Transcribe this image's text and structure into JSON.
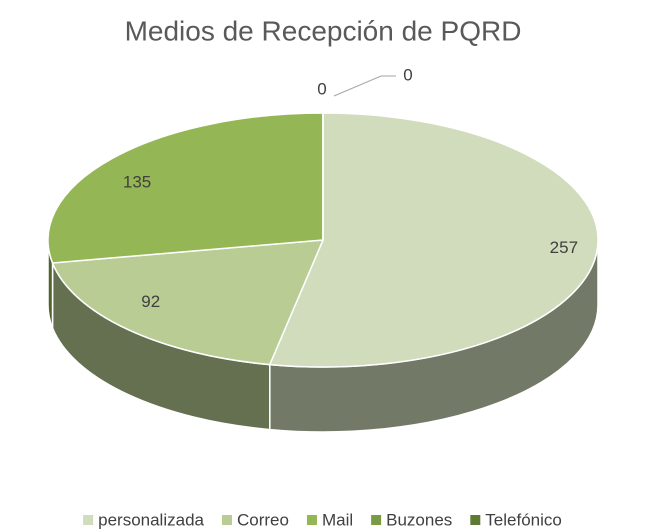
{
  "chart_data": {
    "type": "pie3d",
    "title": "Medios de Recepción de PQRD",
    "categories": [
      "personalizada",
      "Correo",
      "Mail",
      "Buzones",
      "Telefónico"
    ],
    "values": [
      257,
      92,
      135,
      0,
      0
    ],
    "colors": [
      "#d0dcbc",
      "#b8cc94",
      "#94b654",
      "#7a9a44",
      "#5e7a34"
    ],
    "legend": "bottom"
  }
}
